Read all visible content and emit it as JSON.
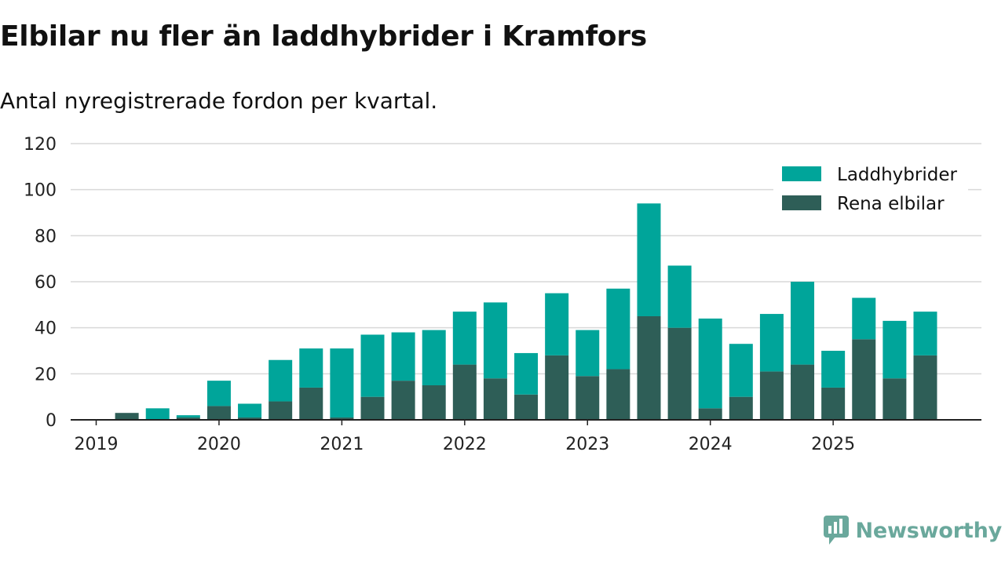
{
  "title": "Elbilar nu fler än laddhybrider i Kramfors",
  "subtitle": "Antal nyregistrerade fordon per kvartal.",
  "brand": {
    "name": "Newsworthy",
    "color": "#6aa89c"
  },
  "colors": {
    "laddhybrider": "#00a59a",
    "rena_elbilar": "#2e5e57",
    "grid": "#d9d9d9",
    "axis": "#222222"
  },
  "chart_data": {
    "type": "bar",
    "stacked": true,
    "ylim": [
      0,
      120
    ],
    "yticks": [
      0,
      20,
      40,
      60,
      80,
      100,
      120
    ],
    "xticks": [
      "2019",
      "2020",
      "2021",
      "2022",
      "2023",
      "2024",
      "2025"
    ],
    "legend_position": "top-right",
    "grid": true,
    "categories": [
      "2019 Q1",
      "2019 Q2",
      "2019 Q3",
      "2019 Q4",
      "2020 Q1",
      "2020 Q2",
      "2020 Q3",
      "2020 Q4",
      "2021 Q1",
      "2021 Q2",
      "2021 Q3",
      "2021 Q4",
      "2022 Q1",
      "2022 Q2",
      "2022 Q3",
      "2022 Q4",
      "2023 Q1",
      "2023 Q2",
      "2023 Q3",
      "2023 Q4",
      "2024 Q1",
      "2024 Q2",
      "2024 Q3",
      "2024 Q4",
      "2025 Q1",
      "2025 Q2",
      "2025 Q3",
      "2025 Q4"
    ],
    "series": [
      {
        "name": "Rena elbilar",
        "color": "#2e5e57",
        "values": [
          0,
          3,
          0,
          1,
          6,
          1,
          8,
          14,
          1,
          10,
          17,
          15,
          24,
          18,
          11,
          28,
          19,
          22,
          45,
          40,
          5,
          10,
          21,
          24,
          14,
          35,
          18,
          28
        ]
      },
      {
        "name": "Laddhybrider",
        "color": "#00a59a",
        "values": [
          0,
          0,
          5,
          1,
          11,
          6,
          18,
          17,
          30,
          27,
          21,
          24,
          23,
          33,
          18,
          27,
          20,
          35,
          49,
          27,
          39,
          23,
          25,
          36,
          16,
          18,
          25,
          19
        ]
      }
    ]
  }
}
